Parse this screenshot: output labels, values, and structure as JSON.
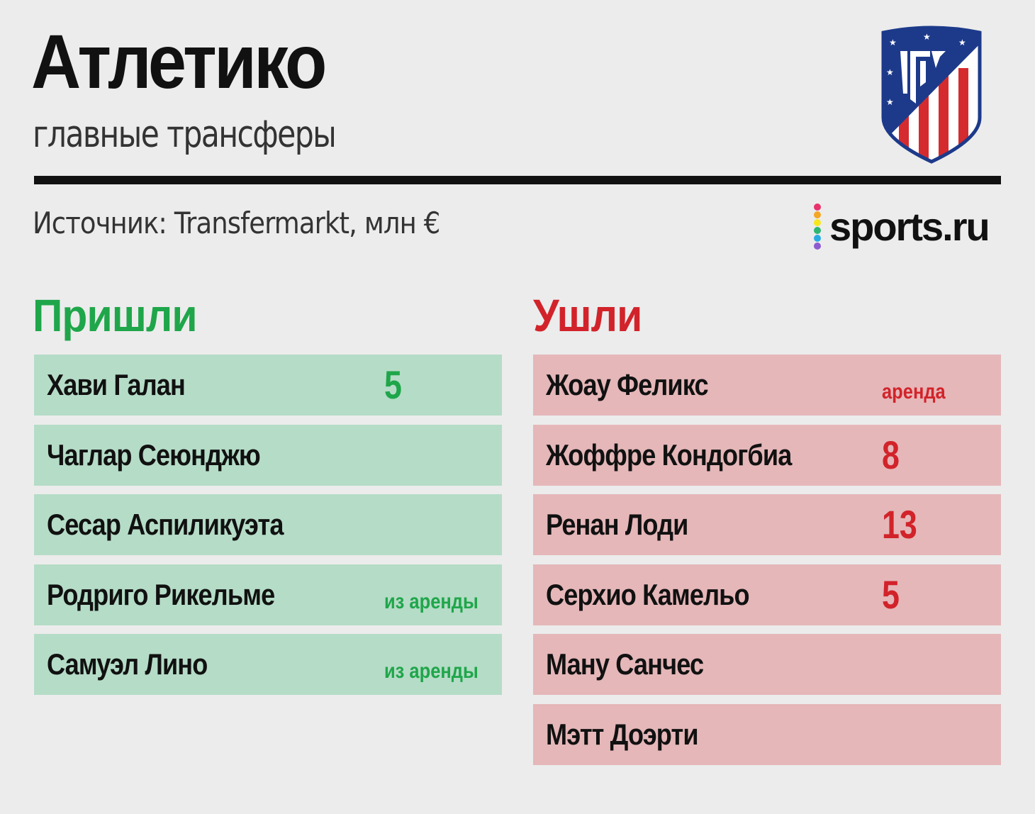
{
  "header": {
    "title": "Атлетико",
    "subtitle": "главные трансферы",
    "source": "Источник: Transfermarkt, млн €"
  },
  "branding": {
    "logo_text": "sports.ru",
    "logo_dot_colors": [
      "#e8336d",
      "#f5a623",
      "#f8e71c",
      "#2bb673",
      "#29abe2",
      "#8e5bd1"
    ],
    "crest_icon": "atletico-madrid-crest-icon"
  },
  "colors": {
    "in_accent": "#1fa64a",
    "out_accent": "#d2232a",
    "in_row": "#b5dcc7",
    "out_row": "#e5b7b9"
  },
  "arrivals": {
    "heading": "Пришли",
    "players": [
      {
        "name": "Хави Галан",
        "fee": "5",
        "note": ""
      },
      {
        "name": "Чаглар Сеюнджю",
        "fee": "",
        "note": ""
      },
      {
        "name": "Сесар Аспиликуэта",
        "fee": "",
        "note": ""
      },
      {
        "name": "Родриго Рикельме",
        "fee": "",
        "note": "из аренды"
      },
      {
        "name": "Самуэл Лино",
        "fee": "",
        "note": "из аренды"
      }
    ]
  },
  "departures": {
    "heading": "Ушли",
    "players": [
      {
        "name": "Жоау Феликс",
        "fee": "",
        "note": "аренда"
      },
      {
        "name": "Жоффре Кондогбиа",
        "fee": "8",
        "note": ""
      },
      {
        "name": "Ренан Лоди",
        "fee": "13",
        "note": ""
      },
      {
        "name": "Серхио Камельо",
        "fee": "5",
        "note": ""
      },
      {
        "name": "Ману Санчес",
        "fee": "",
        "note": ""
      },
      {
        "name": "Мэтт Доэрти",
        "fee": "",
        "note": ""
      }
    ]
  }
}
